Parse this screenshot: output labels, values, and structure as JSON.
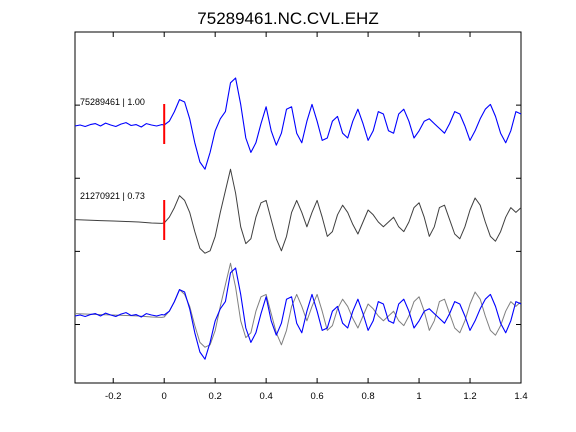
{
  "chart_data": {
    "type": "line",
    "title": "75289461.NC.CVL.EHZ",
    "xlabel": "",
    "ylabel": "",
    "xlim": [
      -0.35,
      1.4
    ],
    "x_ticks": [
      -0.2,
      0,
      0.2,
      0.4,
      0.6,
      0.8,
      1,
      1.2,
      1.4
    ],
    "x_tick_labels": [
      "-0.2",
      "0",
      "0.2",
      "0.4",
      "0.6",
      "0.8",
      "1",
      "1.2",
      "1.4"
    ],
    "y_tick_count": 4,
    "grid": false,
    "colors": {
      "primary": "#0000ff",
      "template": "#404040",
      "overlay_template": "#808080",
      "pick": "#ff0000"
    },
    "traces": [
      {
        "label": "75289461 | 1.00",
        "color": "#0000ff",
        "offset": 1.0,
        "x": [
          -0.35,
          -0.33,
          -0.31,
          -0.29,
          -0.27,
          -0.25,
          -0.23,
          -0.21,
          -0.19,
          -0.17,
          -0.15,
          -0.13,
          -0.11,
          -0.09,
          -0.07,
          -0.05,
          -0.03,
          -0.01,
          0,
          0.02,
          0.04,
          0.06,
          0.08,
          0.1,
          0.12,
          0.14,
          0.16,
          0.18,
          0.2,
          0.22,
          0.24,
          0.26,
          0.28,
          0.3,
          0.32,
          0.34,
          0.36,
          0.38,
          0.4,
          0.42,
          0.44,
          0.46,
          0.48,
          0.5,
          0.52,
          0.54,
          0.56,
          0.58,
          0.6,
          0.62,
          0.64,
          0.66,
          0.68,
          0.7,
          0.72,
          0.74,
          0.76,
          0.78,
          0.8,
          0.82,
          0.84,
          0.86,
          0.88,
          0.9,
          0.92,
          0.94,
          0.96,
          0.98,
          1,
          1.02,
          1.04,
          1.06,
          1.08,
          1.1,
          1.12,
          1.14,
          1.16,
          1.18,
          1.2,
          1.22,
          1.24,
          1.26,
          1.28,
          1.3,
          1.32,
          1.34,
          1.36,
          1.38,
          1.4
        ],
        "y": [
          0.0,
          0.02,
          -0.01,
          0.03,
          0.05,
          0.0,
          0.06,
          0.02,
          -0.01,
          0.04,
          0.07,
          0.01,
          0.03,
          -0.02,
          0.05,
          0.02,
          0.0,
          0.03,
          0.02,
          0.1,
          0.3,
          0.55,
          0.5,
          0.15,
          -0.35,
          -0.75,
          -0.9,
          -0.55,
          -0.1,
          0.15,
          0.3,
          0.9,
          1.0,
          0.45,
          -0.25,
          -0.55,
          -0.35,
          0.05,
          0.4,
          -0.1,
          -0.4,
          -0.15,
          0.35,
          0.4,
          -0.15,
          -0.35,
          0.1,
          0.45,
          0.1,
          -0.3,
          -0.25,
          0.1,
          0.2,
          -0.15,
          -0.25,
          0.1,
          0.35,
          0.05,
          -0.3,
          -0.1,
          0.3,
          0.25,
          -0.1,
          -0.15,
          0.25,
          0.35,
          0.1,
          -0.25,
          -0.1,
          0.1,
          0.15,
          0.05,
          -0.05,
          -0.15,
          0.05,
          0.3,
          0.25,
          0.0,
          -0.3,
          -0.1,
          0.15,
          0.35,
          0.45,
          0.2,
          -0.15,
          -0.35,
          -0.1,
          0.3,
          0.25
        ]
      },
      {
        "label": "21270921 | 0.73",
        "color": "#404040",
        "offset": 0.0,
        "x": [
          -0.35,
          -0.3,
          -0.25,
          -0.2,
          -0.15,
          -0.1,
          -0.05,
          -0.01,
          0,
          0.02,
          0.04,
          0.06,
          0.08,
          0.1,
          0.12,
          0.14,
          0.16,
          0.18,
          0.2,
          0.22,
          0.24,
          0.26,
          0.28,
          0.3,
          0.32,
          0.34,
          0.36,
          0.38,
          0.4,
          0.42,
          0.44,
          0.46,
          0.48,
          0.5,
          0.52,
          0.54,
          0.56,
          0.58,
          0.6,
          0.62,
          0.64,
          0.66,
          0.68,
          0.7,
          0.72,
          0.74,
          0.76,
          0.78,
          0.8,
          0.82,
          0.84,
          0.86,
          0.88,
          0.9,
          0.92,
          0.94,
          0.96,
          0.98,
          1,
          1.02,
          1.04,
          1.06,
          1.08,
          1.1,
          1.12,
          1.14,
          1.16,
          1.18,
          1.2,
          1.22,
          1.24,
          1.26,
          1.28,
          1.3,
          1.32,
          1.34,
          1.36,
          1.38,
          1.4
        ],
        "y": [
          0.05,
          0.04,
          0.03,
          0.02,
          0.01,
          0.0,
          -0.02,
          -0.03,
          -0.02,
          0.1,
          0.3,
          0.55,
          0.45,
          0.2,
          -0.2,
          -0.55,
          -0.65,
          -0.6,
          -0.3,
          0.2,
          0.65,
          1.1,
          0.6,
          -0.1,
          -0.45,
          -0.35,
          0.1,
          0.4,
          0.45,
          0.05,
          -0.35,
          -0.6,
          -0.3,
          0.2,
          0.45,
          0.2,
          -0.1,
          0.2,
          0.45,
          0.1,
          -0.3,
          -0.2,
          0.15,
          0.35,
          0.2,
          -0.05,
          -0.25,
          0.0,
          0.25,
          0.15,
          0.0,
          -0.1,
          0.0,
          0.1,
          -0.1,
          -0.2,
          0.0,
          0.3,
          0.4,
          0.1,
          -0.3,
          -0.1,
          0.3,
          0.35,
          0.05,
          -0.25,
          -0.35,
          -0.1,
          0.25,
          0.5,
          0.35,
          0.0,
          -0.3,
          -0.4,
          -0.2,
          0.1,
          0.3,
          0.2,
          0.3
        ]
      }
    ],
    "pick_x": 0
  }
}
